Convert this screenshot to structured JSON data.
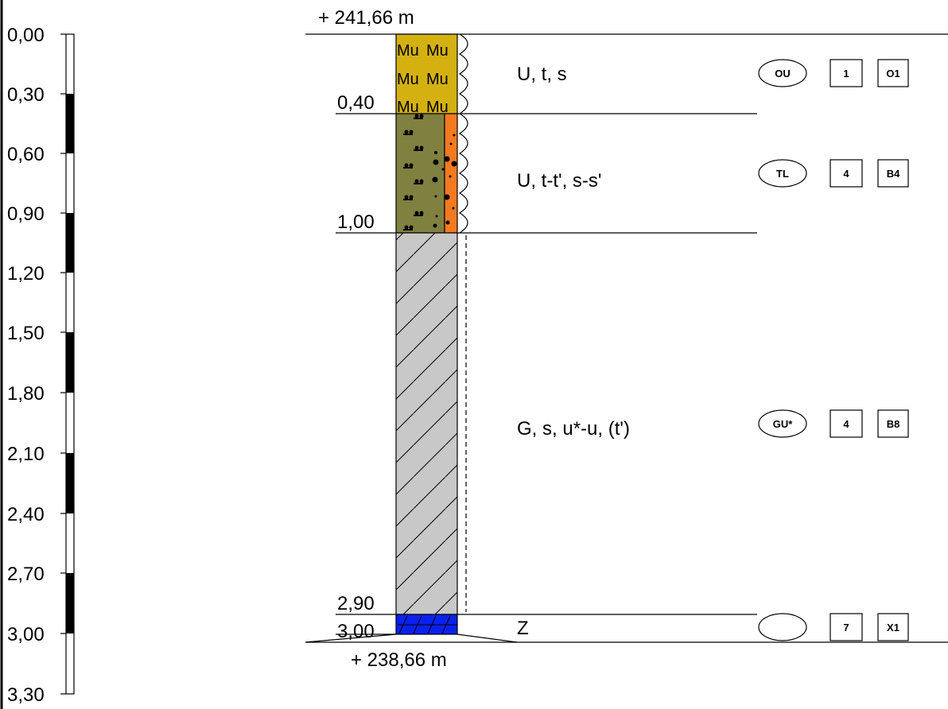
{
  "scale": {
    "ticks": [
      "0,00",
      "0,30",
      "0,60",
      "0,90",
      "1,20",
      "1,50",
      "1,80",
      "2,10",
      "2,40",
      "2,70",
      "3,00",
      "3,30"
    ]
  },
  "elevation": {
    "top": "+ 241,66 m",
    "bottom": "+ 238,66 m"
  },
  "depth_labels": [
    "0,40",
    "1,00",
    "2,90",
    "3,00"
  ],
  "fill_pattern_text": "Mu",
  "layers": [
    {
      "description": "U, t, s",
      "soil_group": "OU",
      "class_1": "1",
      "class_2": "O1",
      "colors": [
        "#d4b111"
      ]
    },
    {
      "description": "U, t-t', s-s'",
      "soil_group": "TL",
      "class_1": "4",
      "class_2": "B4",
      "colors": [
        "#808040",
        "#f47a20"
      ]
    },
    {
      "description": "G, s, u*-u, (t')",
      "soil_group": "GU*",
      "class_1": "4",
      "class_2": "B8",
      "colors": [
        "#c8c8c8"
      ]
    },
    {
      "description": "Z",
      "soil_group": "",
      "class_1": "7",
      "class_2": "X1",
      "colors": [
        "#0a20ee"
      ]
    }
  ]
}
